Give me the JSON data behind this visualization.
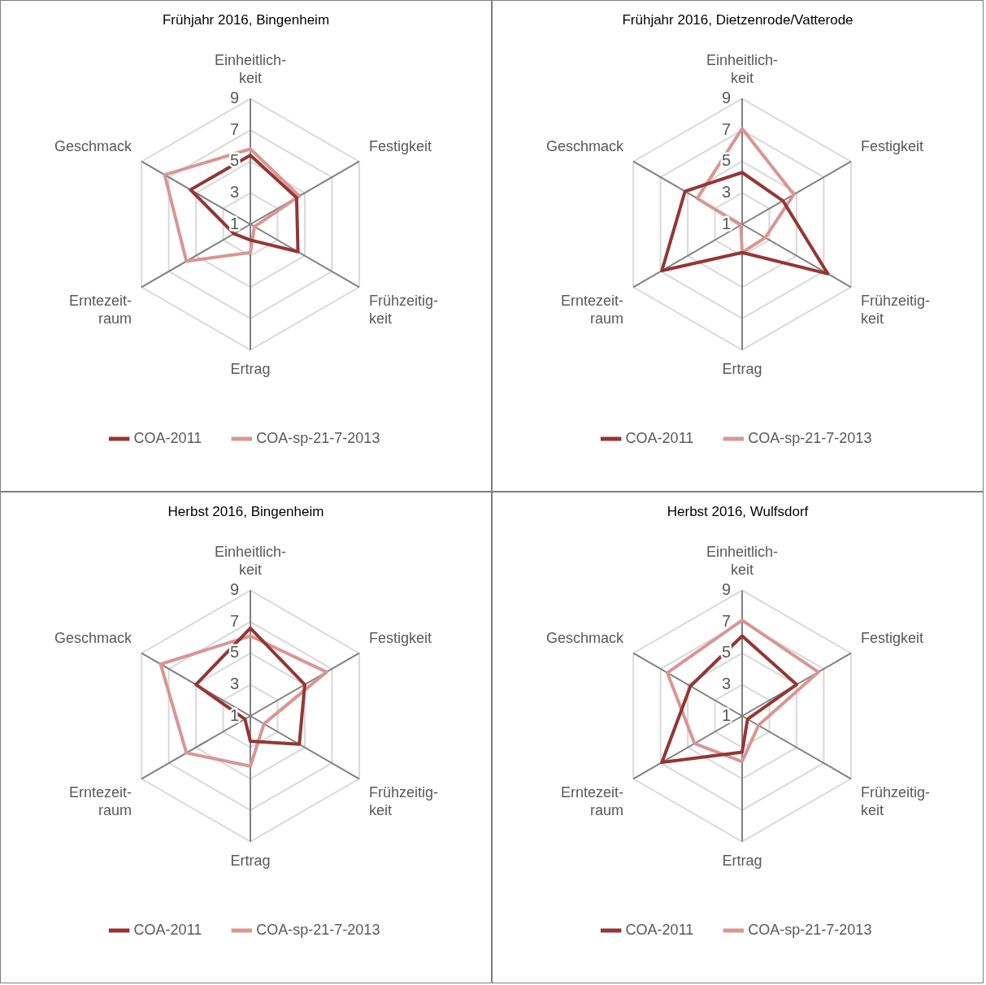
{
  "chart_data": [
    {
      "type": "radar",
      "title": "Frühjahr 2016, Bingenheim",
      "categories": [
        "Einheitlich-keit",
        "Festigkeit",
        "Frühzeitig-keit",
        "Ertrag",
        "Erntezeit-raum",
        "Geschmack"
      ],
      "series": [
        {
          "name": "COA-2011",
          "color": "#943634",
          "values": [
            5.4,
            4.4,
            4.5,
            2.0,
            2.2,
            5.4
          ]
        },
        {
          "name": "COA-sp-21-7-2013",
          "color": "#d99694",
          "values": [
            5.8,
            4.6,
            1.3,
            2.8,
            5.7,
            7.3
          ]
        }
      ],
      "ylim": [
        1,
        9
      ],
      "yticks": [
        1,
        3,
        5,
        7,
        9
      ],
      "grid": true,
      "legend": "bottom",
      "marker": "none"
    },
    {
      "type": "radar",
      "title": "Frühjahr 2016, Dietzenrode/Vatterode",
      "categories": [
        "Einheitlich-keit",
        "Festigkeit",
        "Frühzeitig-keit",
        "Ertrag",
        "Erntezeit-raum",
        "Geschmack"
      ],
      "series": [
        {
          "name": "COA-2011",
          "color": "#943634",
          "values": [
            4.3,
            4.0,
            7.3,
            2.8,
            6.9,
            5.2
          ]
        },
        {
          "name": "COA-sp-21-7-2013",
          "color": "#d99694",
          "values": [
            7.1,
            4.8,
            2.7,
            2.8,
            1.1,
            4.3
          ]
        }
      ],
      "ylim": [
        1,
        9
      ],
      "yticks": [
        1,
        3,
        5,
        7,
        9
      ],
      "grid": true,
      "legend": "bottom",
      "marker": "none"
    },
    {
      "type": "radar",
      "title": "Herbst 2016, Bingenheim",
      "categories": [
        "Einheitlich-keit",
        "Festigkeit",
        "Frühzeitig-keit",
        "Ertrag",
        "Erntezeit-raum",
        "Geschmack"
      ],
      "series": [
        {
          "name": "COA-2011",
          "color": "#943634",
          "values": [
            6.6,
            5.0,
            4.6,
            2.6,
            1.4,
            5.0
          ]
        },
        {
          "name": "COA-sp-21-7-2013",
          "color": "#d99694",
          "values": [
            6.1,
            6.6,
            2.0,
            4.2,
            5.7,
            7.6
          ]
        }
      ],
      "ylim": [
        1,
        9
      ],
      "yticks": [
        1,
        3,
        5,
        7,
        9
      ],
      "grid": true,
      "legend": "bottom",
      "marker": "none"
    },
    {
      "type": "radar",
      "title": "Herbst 2016, Wulfsdorf",
      "categories": [
        "Einheitlich-keit",
        "Festigkeit",
        "Frühzeitig-keit",
        "Ertrag",
        "Erntezeit-raum",
        "Geschmack"
      ],
      "series": [
        {
          "name": "COA-2011",
          "color": "#943634",
          "values": [
            6.1,
            5.0,
            1.4,
            3.3,
            6.9,
            4.8
          ]
        },
        {
          "name": "COA-sp-21-7-2013",
          "color": "#d99694",
          "values": [
            7.1,
            6.6,
            2.2,
            3.9,
            4.5,
            6.5
          ]
        }
      ],
      "ylim": [
        1,
        9
      ],
      "yticks": [
        1,
        3,
        5,
        7,
        9
      ],
      "grid": true,
      "legend": "bottom",
      "marker": "none"
    }
  ]
}
